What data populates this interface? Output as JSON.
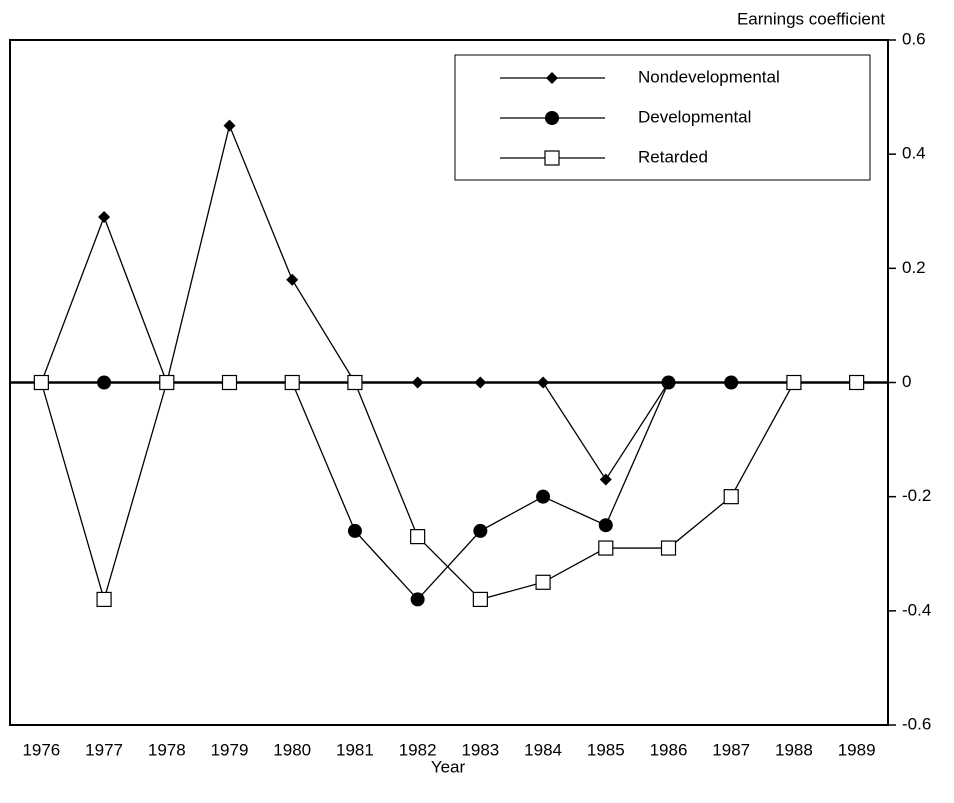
{
  "chart_data": {
    "type": "line",
    "y_axis_label": "Earnings coefficient",
    "x_axis_label": "Year",
    "categories": [
      "1976",
      "1977",
      "1978",
      "1979",
      "1980",
      "1981",
      "1982",
      "1983",
      "1984",
      "1985",
      "1986",
      "1987",
      "1988",
      "1989"
    ],
    "series": [
      {
        "name": "Nondevelopmental",
        "color": "#000000",
        "marker": "diamond",
        "values": [
          0,
          0.29,
          0,
          0.45,
          0.18,
          0,
          0,
          0,
          0,
          -0.17,
          0,
          0,
          0,
          0
        ]
      },
      {
        "name": "Developmental",
        "color": "#000000",
        "marker": "circle",
        "values": [
          0,
          0,
          0,
          0,
          0,
          -0.26,
          -0.38,
          -0.26,
          -0.2,
          -0.25,
          0,
          0,
          0,
          0
        ]
      },
      {
        "name": "Retarded",
        "color": "#000000",
        "marker": "square",
        "values": [
          0,
          -0.38,
          0,
          0,
          0,
          0,
          -0.27,
          -0.38,
          -0.35,
          -0.29,
          -0.29,
          -0.2,
          0,
          0
        ]
      }
    ],
    "ylim": [
      -0.6,
      0.6
    ],
    "yticks": [
      0.6,
      0.4,
      0.2,
      0,
      -0.2,
      -0.4,
      -0.6
    ],
    "y_axis_side": "right",
    "legend": "upper right",
    "grid": false
  }
}
